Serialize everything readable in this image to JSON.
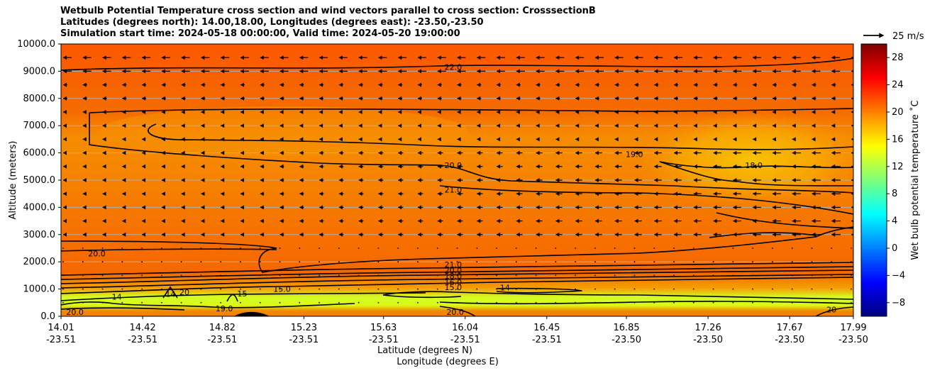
{
  "chart_data": {
    "type": "heatmap",
    "title_lines": [
      "Wetbulb Potential Temperature cross section and wind vectors parallel to cross section: CrosssectionB",
      "Latitudes (degrees north): 14.00,18.00, Longitudes (degrees east): -23.50,-23.50",
      "Simulation start time: 2024-05-18 00:00:00, Valid time: 2024-05-20 19:00:00"
    ],
    "ylabel": "Altitude (meters)",
    "xlabel_lat": "Latitude (degrees N)",
    "xlabel_lon": "Longitude (degrees E)",
    "ylim": [
      0,
      10000
    ],
    "yticks": [
      "0.0",
      "1000.0",
      "2000.0",
      "3000.0",
      "4000.0",
      "5000.0",
      "6000.0",
      "7000.0",
      "8000.0",
      "9000.0",
      "10000.0"
    ],
    "xticks": [
      {
        "lat": "14.01",
        "lon": "-23.51"
      },
      {
        "lat": "14.42",
        "lon": "-23.51"
      },
      {
        "lat": "14.82",
        "lon": "-23.51"
      },
      {
        "lat": "15.23",
        "lon": "-23.51"
      },
      {
        "lat": "15.63",
        "lon": "-23.51"
      },
      {
        "lat": "16.04",
        "lon": "-23.51"
      },
      {
        "lat": "16.45",
        "lon": "-23.51"
      },
      {
        "lat": "16.85",
        "lon": "-23.50"
      },
      {
        "lat": "17.26",
        "lon": "-23.50"
      },
      {
        "lat": "17.67",
        "lon": "-23.50"
      },
      {
        "lat": "17.99",
        "lon": "-23.50"
      }
    ],
    "xlim": [
      14.01,
      17.99
    ],
    "grid_horizontal": true,
    "colorbar": {
      "label": "Wet bulb potential temperature ˚C",
      "min": -10,
      "max": 30,
      "ticks": [
        "−8",
        "−4",
        "0",
        "4",
        "8",
        "12",
        "16",
        "20",
        "24",
        "28"
      ],
      "colormap": "jet"
    },
    "quiver_key": "25 m/s",
    "contour_labels": [
      {
        "text": "22.0",
        "lat": 15.98,
        "alt": 9150
      },
      {
        "text": "20.0",
        "lat": 15.98,
        "alt": 5550
      },
      {
        "text": "21.0",
        "lat": 15.98,
        "alt": 4650
      },
      {
        "text": "19.0",
        "lat": 16.89,
        "alt": 5950
      },
      {
        "text": "18.0",
        "lat": 17.49,
        "alt": 5550
      },
      {
        "text": "20.0",
        "lat": 14.19,
        "alt": 2300
      },
      {
        "text": "21.0",
        "lat": 15.98,
        "alt": 1900
      },
      {
        "text": "20.0",
        "lat": 15.98,
        "alt": 1680
      },
      {
        "text": "18.0",
        "lat": 15.98,
        "alt": 1480
      },
      {
        "text": "16.0",
        "lat": 15.98,
        "alt": 1250
      },
      {
        "text": "15.0",
        "lat": 15.98,
        "alt": 1070
      },
      {
        "text": "15.0",
        "lat": 15.12,
        "alt": 1000
      },
      {
        "text": "14",
        "lat": 16.24,
        "alt": 1050
      },
      {
        "text": "14",
        "lat": 14.29,
        "alt": 720
      },
      {
        "text": "14",
        "lat": 14.56,
        "alt": 820
      },
      {
        "text": "20",
        "lat": 14.63,
        "alt": 880
      },
      {
        "text": "15",
        "lat": 14.92,
        "alt": 830
      },
      {
        "text": "19.0",
        "lat": 14.83,
        "alt": 280
      },
      {
        "text": "20.0",
        "lat": 14.08,
        "alt": 150
      },
      {
        "text": "20.0",
        "lat": 15.99,
        "alt": 150
      },
      {
        "text": "20",
        "lat": 17.88,
        "alt": 250
      }
    ]
  }
}
